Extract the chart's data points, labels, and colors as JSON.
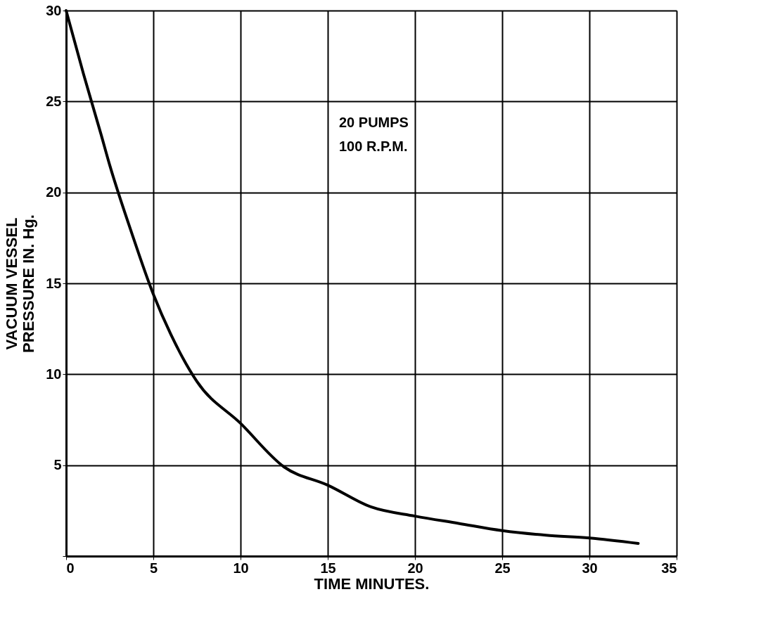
{
  "chart_data": {
    "type": "line",
    "xlabel": "TIME   MINUTES.",
    "ylabel": "VACUUM  VESSEL\nPRESSURE  IN. Hg.",
    "x": [
      0,
      1,
      2,
      2.5,
      3.75,
      5,
      6,
      7.5,
      10,
      12.5,
      15,
      17.5,
      20,
      22.5,
      25,
      27.5,
      30,
      32.8
    ],
    "series": [
      {
        "color": "#000000",
        "values": [
          30,
          26.5,
          23.2,
          21.5,
          17.8,
          14.4,
          12.2,
          9.6,
          7.3,
          4.9,
          3.9,
          2.7,
          2.2,
          1.8,
          1.4,
          1.15,
          1.0,
          0.7
        ]
      }
    ],
    "xlim": [
      0,
      35
    ],
    "xticks": [
      0,
      5,
      10,
      15,
      20,
      25,
      30,
      35
    ],
    "ylim": [
      0,
      30
    ],
    "yticks": [
      {
        "value": 0,
        "label": null
      },
      5,
      10,
      15,
      20,
      25,
      30
    ],
    "grid": true,
    "marker": "none",
    "line_style": "solid",
    "annotations": [
      "20 PUMPS\n100 R.P.M."
    ]
  }
}
